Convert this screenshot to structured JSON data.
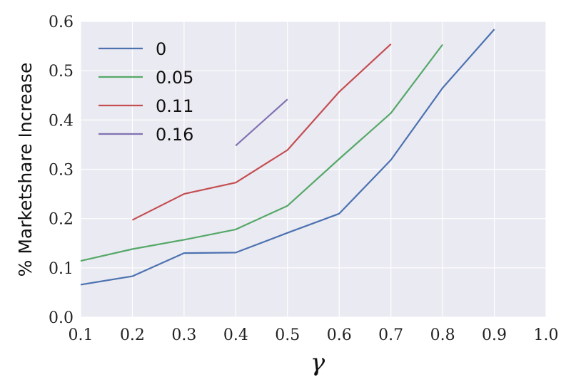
{
  "chart_data": {
    "type": "line",
    "xlabel": "γ",
    "ylabel": "% Marketshare Increase",
    "xlim": [
      0.1,
      1.0
    ],
    "ylim": [
      0.0,
      0.6
    ],
    "x_ticks": [
      "0.1",
      "0.2",
      "0.3",
      "0.4",
      "0.5",
      "0.6",
      "0.7",
      "0.8",
      "0.9",
      "1.0"
    ],
    "y_ticks": [
      "0.0",
      "0.1",
      "0.2",
      "0.3",
      "0.4",
      "0.5",
      "0.6"
    ],
    "grid": true,
    "legend_position": "top-left",
    "background_color": "#EAEAF2",
    "series": [
      {
        "name": "0",
        "color": "#4C72B0",
        "x": [
          0.1,
          0.2,
          0.3,
          0.4,
          0.5,
          0.6,
          0.7,
          0.8,
          0.9
        ],
        "y": [
          0.066,
          0.083,
          0.13,
          0.131,
          0.171,
          0.21,
          0.319,
          0.465,
          0.584
        ]
      },
      {
        "name": "0.05",
        "color": "#55A868",
        "x": [
          0.1,
          0.2,
          0.3,
          0.4,
          0.5,
          0.6,
          0.7,
          0.8
        ],
        "y": [
          0.114,
          0.138,
          0.157,
          0.178,
          0.226,
          0.321,
          0.414,
          0.553
        ]
      },
      {
        "name": "0.11",
        "color": "#C44E52",
        "x": [
          0.2,
          0.3,
          0.4,
          0.5,
          0.6,
          0.7
        ],
        "y": [
          0.197,
          0.25,
          0.273,
          0.339,
          0.457,
          0.554
        ]
      },
      {
        "name": "0.16",
        "color": "#8172B2",
        "x": [
          0.4,
          0.5
        ],
        "y": [
          0.348,
          0.442
        ]
      }
    ]
  }
}
